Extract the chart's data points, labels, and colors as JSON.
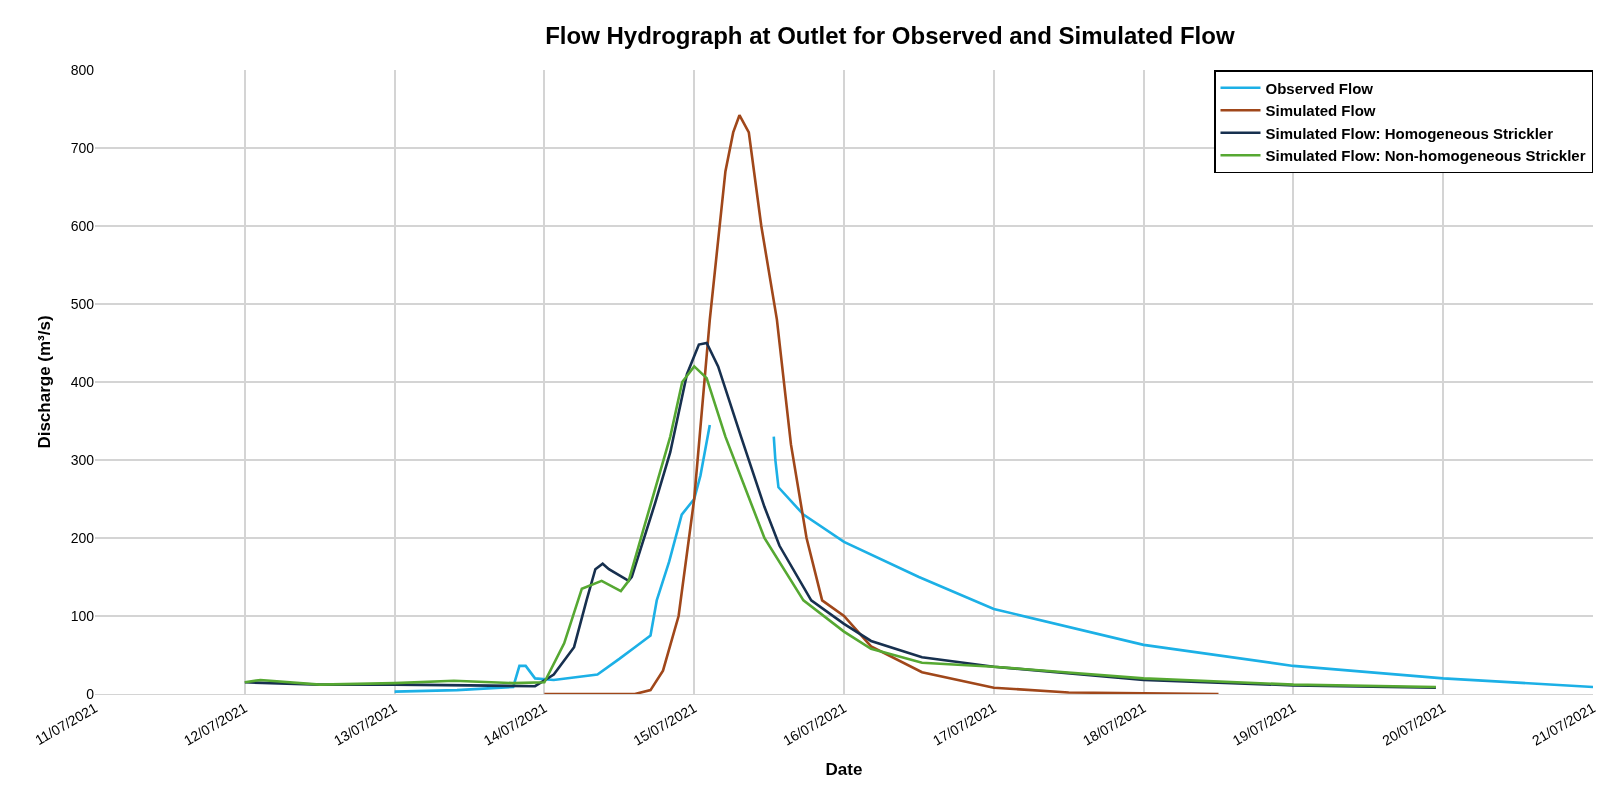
{
  "chart_data": {
    "type": "line",
    "title": "Flow Hydrograph at Outlet for Observed and Simulated Flow",
    "xlabel": "Date",
    "ylabel": "Discharge (m³/s)",
    "xlim": [
      "2021-07-11",
      "2021-07-21"
    ],
    "xticks": [
      {
        "value": "2021-07-11",
        "label": "11/07/2021"
      },
      {
        "value": "2021-07-12",
        "label": "12/07/2021"
      },
      {
        "value": "2021-07-13",
        "label": "13/07/2021"
      },
      {
        "value": "2021-07-14",
        "label": "14/07/2021"
      },
      {
        "value": "2021-07-15",
        "label": "15/07/2021"
      },
      {
        "value": "2021-07-16",
        "label": "16/07/2021"
      },
      {
        "value": "2021-07-17",
        "label": "17/07/2021"
      },
      {
        "value": "2021-07-18",
        "label": "18/07/2021"
      },
      {
        "value": "2021-07-19",
        "label": "19/07/2021"
      },
      {
        "value": "2021-07-20",
        "label": "20/07/2021"
      },
      {
        "value": "2021-07-21",
        "label": "21/07/2021"
      }
    ],
    "ylim": [
      0,
      800
    ],
    "yticks": [
      0,
      100,
      200,
      300,
      400,
      500,
      600,
      700,
      800
    ],
    "grid": true,
    "legend": "top right",
    "marker": "none",
    "line_style": "solid",
    "series": [
      {
        "name": "Observed Flow",
        "color": "#1cb0e6",
        "x": [
          "2021-07-13T00:00",
          "2021-07-13T10:00",
          "2021-07-13T19:00",
          "2021-07-13T20:00",
          "2021-07-13T21:00",
          "2021-07-13T22:30",
          "2021-07-14T01:30",
          "2021-07-14T08:30",
          "2021-07-14T12:00",
          "2021-07-14T14:30",
          "2021-07-14T17:00",
          "2021-07-14T18:00",
          "2021-07-14T20:00",
          "2021-07-14T22:00",
          "2021-07-15T00:00",
          "2021-07-15T01:00",
          "2021-07-15T02:30",
          "2021-07-15T05:00",
          "2021-07-15T12:45",
          "2021-07-15T13:00",
          "2021-07-15T13:30",
          "2021-07-15T17:30",
          "2021-07-16T00:00",
          "2021-07-16T12:00",
          "2021-07-17T00:00",
          "2021-07-18T00:00",
          "2021-07-19T00:00",
          "2021-07-20T00:00",
          "2021-07-21T00:00"
        ],
        "values": [
          3,
          5,
          9,
          36,
          36,
          20,
          18,
          25,
          45,
          60,
          75,
          120,
          170,
          230,
          250,
          280,
          345,
          null,
          330,
          300,
          265,
          230,
          195,
          150,
          109,
          63,
          36,
          20,
          9
        ]
      },
      {
        "name": "Simulated Flow",
        "color": "#a0471a",
        "x": [
          "2021-07-14T00:00",
          "2021-07-14T14:30",
          "2021-07-14T17:00",
          "2021-07-14T19:00",
          "2021-07-14T21:30",
          "2021-07-15T00:00",
          "2021-07-15T02:30",
          "2021-07-15T05:00",
          "2021-07-15T06:15",
          "2021-07-15T07:15",
          "2021-07-15T08:45",
          "2021-07-15T10:45",
          "2021-07-15T13:15",
          "2021-07-15T15:30",
          "2021-07-15T18:00",
          "2021-07-15T20:30",
          "2021-07-16T00:00",
          "2021-07-16T04:20",
          "2021-07-16T12:30",
          "2021-07-17T00:00",
          "2021-07-17T12:00",
          "2021-07-18T12:00"
        ],
        "values": [
          0,
          0,
          5,
          30,
          100,
          250,
          480,
          670,
          720,
          742,
          720,
          600,
          480,
          320,
          200,
          120,
          100,
          61,
          28,
          8,
          2,
          0
        ]
      },
      {
        "name": "Simulated Flow: Homogeneous Strickler",
        "color": "#17304f",
        "x": [
          "2021-07-12T00:00",
          "2021-07-12T12:00",
          "2021-07-13T00:00",
          "2021-07-13T12:00",
          "2021-07-13T22:30",
          "2021-07-14T01:30",
          "2021-07-14T04:45",
          "2021-07-14T06:45",
          "2021-07-14T08:10",
          "2021-07-14T09:20",
          "2021-07-14T10:20",
          "2021-07-14T13:30",
          "2021-07-14T14:00",
          "2021-07-14T17:45",
          "2021-07-14T20:10",
          "2021-07-14T22:50",
          "2021-07-15T00:45",
          "2021-07-15T02:00",
          "2021-07-15T03:50",
          "2021-07-15T07:30",
          "2021-07-15T11:15",
          "2021-07-15T13:40",
          "2021-07-15T18:45",
          "2021-07-16T00:00",
          "2021-07-16T04:20",
          "2021-07-16T12:30",
          "2021-07-17T00:00",
          "2021-07-18T00:00",
          "2021-07-19T00:00",
          "2021-07-19T22:50"
        ],
        "values": [
          15,
          12,
          12,
          11,
          10,
          25,
          60,
          120,
          160,
          167,
          160,
          145,
          150,
          245,
          310,
          410,
          448,
          450,
          420,
          330,
          240,
          190,
          120,
          90,
          68,
          47,
          35,
          18,
          11,
          8
        ]
      },
      {
        "name": "Simulated Flow: Non-homogeneous Strickler",
        "color": "#56a832",
        "x": [
          "2021-07-12T00:00",
          "2021-07-12T02:30",
          "2021-07-12T12:00",
          "2021-07-13T00:00",
          "2021-07-13T09:30",
          "2021-07-13T19:00",
          "2021-07-14T00:00",
          "2021-07-14T03:10",
          "2021-07-14T06:00",
          "2021-07-14T09:10",
          "2021-07-14T12:15",
          "2021-07-14T13:30",
          "2021-07-14T15:50",
          "2021-07-14T20:10",
          "2021-07-14T22:05",
          "2021-07-15T00:00",
          "2021-07-15T02:00",
          "2021-07-15T05:00",
          "2021-07-15T11:15",
          "2021-07-15T17:30",
          "2021-07-16T00:00",
          "2021-07-16T04:20",
          "2021-07-16T12:30",
          "2021-07-17T00:00",
          "2021-07-18T00:00",
          "2021-07-19T00:00",
          "2021-07-19T22:50"
        ],
        "values": [
          15,
          18,
          12,
          14,
          17,
          14,
          15,
          65,
          135,
          145,
          132,
          145,
          210,
          330,
          400,
          420,
          405,
          330,
          200,
          120,
          80,
          58,
          40,
          35,
          20,
          12,
          9
        ]
      }
    ]
  }
}
